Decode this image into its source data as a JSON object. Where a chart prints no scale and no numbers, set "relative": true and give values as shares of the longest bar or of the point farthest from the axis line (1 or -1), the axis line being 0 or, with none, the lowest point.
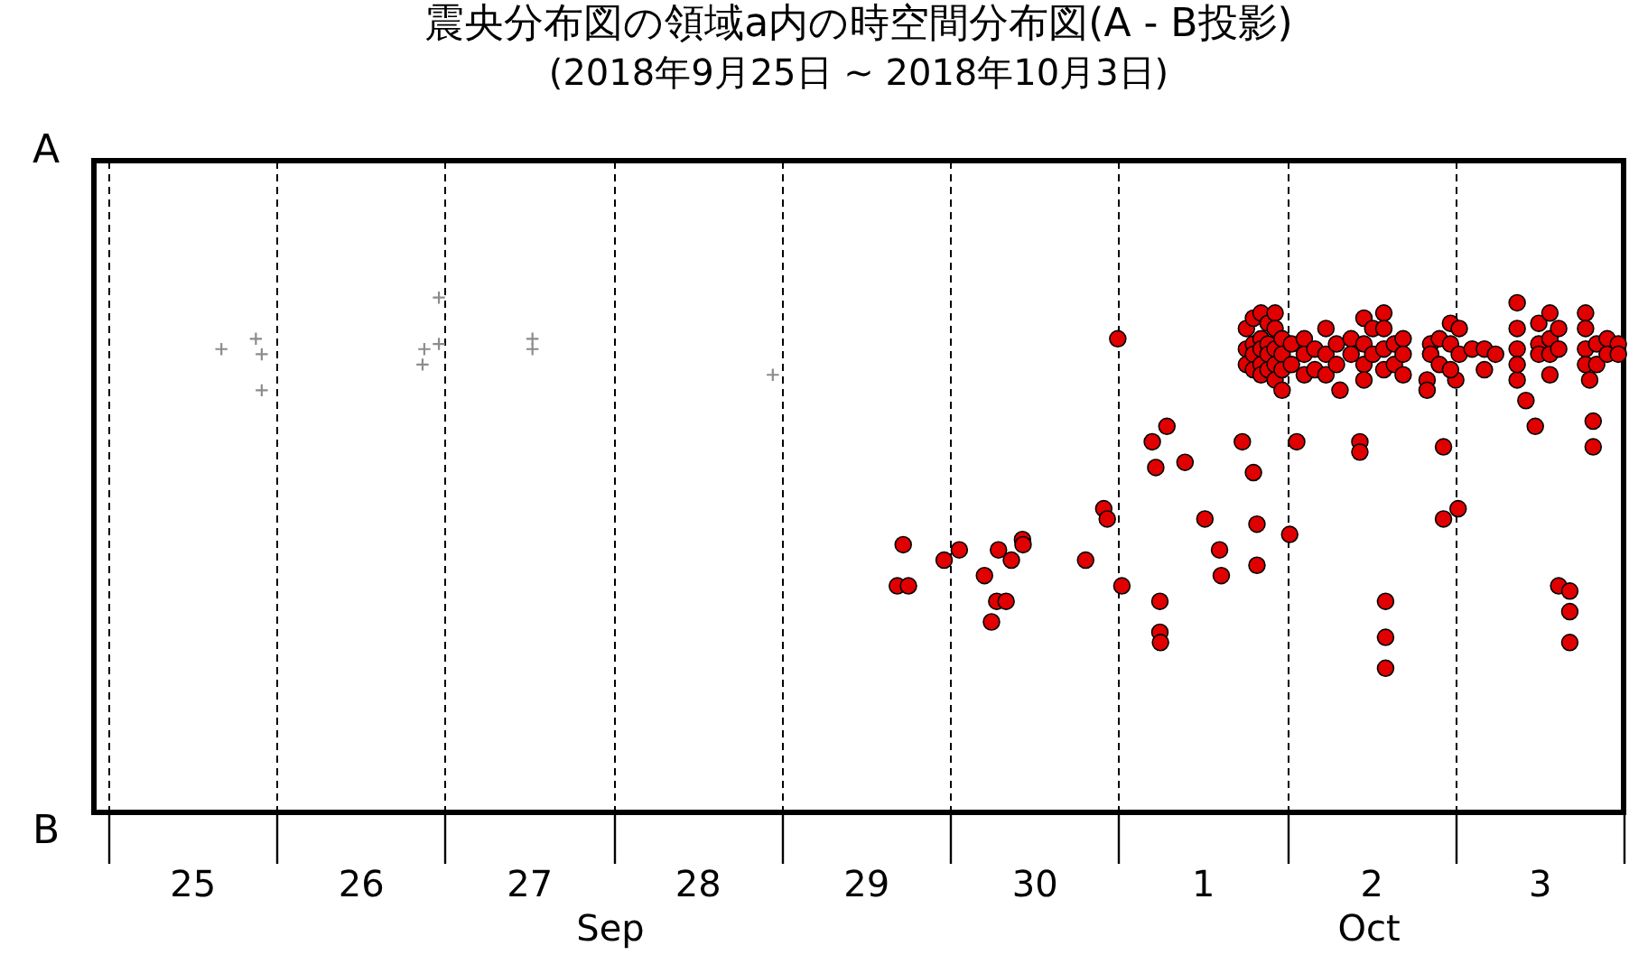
{
  "chart_data": {
    "type": "scatter",
    "title": "震央分布図の領域a内の時空間分布図(A - B投影)",
    "subtitle": "(2018年9月25日 ~ 2018年10月3日)",
    "xlim": [
      "2018-09-24T22:00",
      "2018-10-04T00:00"
    ],
    "xticks": [
      {
        "value": "2018-09-25T00:00",
        "label": null
      },
      {
        "value": "2018-09-25T12:00",
        "label": "25"
      },
      {
        "value": "2018-09-26T00:00",
        "label": null
      },
      {
        "value": "2018-09-26T12:00",
        "label": "26"
      },
      {
        "value": "2018-09-27T00:00",
        "label": null
      },
      {
        "value": "2018-09-27T12:00",
        "label": "27"
      },
      {
        "value": "2018-09-28T00:00",
        "label": null
      },
      {
        "value": "2018-09-28T12:00",
        "label": "28"
      },
      {
        "value": "2018-09-29T00:00",
        "label": null
      },
      {
        "value": "2018-09-29T12:00",
        "label": "29"
      },
      {
        "value": "2018-09-30T00:00",
        "label": null
      },
      {
        "value": "2018-09-30T12:00",
        "label": "30"
      },
      {
        "value": "2018-10-01T00:00",
        "label": null
      },
      {
        "value": "2018-10-01T12:00",
        "label": "1"
      },
      {
        "value": "2018-10-02T00:00",
        "label": null
      },
      {
        "value": "2018-10-02T12:00",
        "label": "2"
      },
      {
        "value": "2018-10-03T00:00",
        "label": null
      },
      {
        "value": "2018-10-03T12:00",
        "label": "3"
      },
      {
        "value": "2018-10-04T00:00",
        "label": null
      }
    ],
    "relative": true,
    "grid": "x",
    "annotations": [
      "A",
      "B",
      "Sep",
      "Oct"
    ],
    "series": [
      {
        "color": "#8c8c8c",
        "marker": "cross",
        "x": [
          "2018-09-25T16:10",
          "2018-09-25T21:05",
          "2018-09-25T21:55",
          "2018-09-25T21:55",
          "2018-09-26T21:05",
          "2018-09-26T20:50",
          "2018-09-26T23:10",
          "2018-09-26T23:10",
          "2018-09-27T12:30",
          "2018-09-27T12:30",
          "2018-09-28T22:45"
        ],
        "values": [
          0.9,
          0.92,
          0.89,
          0.82,
          0.9,
          0.87,
          1,
          0.91,
          0.92,
          0.9,
          0.85
        ]
      },
      {
        "color": "#e00000",
        "marker": "circle",
        "x": [
          "2018-09-29T17:20",
          "2018-09-29T16:30",
          "2018-09-29T18:05",
          "2018-09-29T23:10",
          "2018-09-30T01:20",
          "2018-09-30T04:55",
          "2018-09-30T06:55",
          "2018-09-30T08:45",
          "2018-09-30T10:20",
          "2018-09-30T10:25",
          "2018-09-30T06:40",
          "2018-09-30T08:00",
          "2018-09-30T05:55",
          "2018-09-30T19:20",
          "2018-09-30T21:55",
          "2018-09-30T22:25",
          "2018-09-30T23:55",
          "2018-10-01T00:30",
          "2018-10-01T04:50",
          "2018-10-01T06:55",
          "2018-10-01T05:20",
          "2018-10-01T09:30",
          "2018-10-01T05:55",
          "2018-10-01T05:55",
          "2018-10-01T06:00",
          "2018-10-01T12:20",
          "2018-10-01T14:25",
          "2018-10-01T14:40",
          "2018-10-01T17:40",
          "2018-10-01T19:15",
          "2018-10-01T19:45",
          "2018-10-01T19:45",
          "2018-10-02T00:25",
          "2018-10-02T01:25",
          "2018-10-02T10:25",
          "2018-10-02T10:25",
          "2018-10-02T07:35",
          "2018-10-02T14:05",
          "2018-10-02T14:05",
          "2018-10-02T14:05",
          "2018-10-02T22:20",
          "2018-10-03T00:25",
          "2018-10-02T22:20",
          "2018-10-02T20:00",
          "2018-10-02T20:00",
          "2018-10-03T00:05",
          "2018-10-03T14:45",
          "2018-10-03T16:20",
          "2018-10-03T16:20",
          "2018-10-03T16:20",
          "2018-10-03T11:25",
          "2018-10-03T19:40",
          "2018-10-03T19:40",
          "2018-10-03T08:50",
          "2018-10-03T10:05",
          "2018-10-03T19:10",
          "2018-10-01T18:15",
          "2018-10-01T18:15",
          "2018-10-01T18:15",
          "2018-10-01T19:15",
          "2018-10-01T19:15",
          "2018-10-01T19:15",
          "2018-10-01T19:15",
          "2018-10-01T20:20",
          "2018-10-01T20:20",
          "2018-10-01T20:20",
          "2018-10-01T20:20",
          "2018-10-01T20:20",
          "2018-10-01T21:20",
          "2018-10-01T21:20",
          "2018-10-01T21:20",
          "2018-10-01T21:20",
          "2018-10-01T22:20",
          "2018-10-01T22:20",
          "2018-10-01T22:20",
          "2018-10-01T22:20",
          "2018-10-01T22:20",
          "2018-10-01T23:20",
          "2018-10-01T23:20",
          "2018-10-01T23:20",
          "2018-10-01T23:20",
          "2018-10-02T00:40",
          "2018-10-02T00:40",
          "2018-10-02T02:30",
          "2018-10-02T02:30",
          "2018-10-02T02:30",
          "2018-10-02T04:00",
          "2018-10-02T04:00",
          "2018-10-02T05:35",
          "2018-10-02T05:35",
          "2018-10-02T05:35",
          "2018-10-02T07:05",
          "2018-10-02T07:05",
          "2018-10-02T09:10",
          "2018-10-02T09:10",
          "2018-10-02T11:00",
          "2018-10-02T11:00",
          "2018-10-02T11:00",
          "2018-10-02T11:00",
          "2018-10-02T12:15",
          "2018-10-02T12:15",
          "2018-10-02T13:50",
          "2018-10-02T13:50",
          "2018-10-02T13:50",
          "2018-10-02T13:50",
          "2018-10-02T15:20",
          "2018-10-02T15:20",
          "2018-10-02T16:35",
          "2018-10-02T16:35",
          "2018-10-02T16:35",
          "2018-10-02T20:30",
          "2018-10-02T20:30",
          "2018-10-02T21:45",
          "2018-10-02T21:45",
          "2018-10-02T23:20",
          "2018-10-02T23:20",
          "2018-10-02T23:20",
          "2018-10-03T00:35",
          "2018-10-03T00:35",
          "2018-10-03T02:25",
          "2018-10-03T04:10",
          "2018-10-03T04:10",
          "2018-10-03T05:45",
          "2018-10-03T08:50",
          "2018-10-03T08:50",
          "2018-10-03T08:50",
          "2018-10-03T08:50",
          "2018-10-03T11:55",
          "2018-10-03T11:55",
          "2018-10-03T11:55",
          "2018-10-03T13:30",
          "2018-10-03T13:30",
          "2018-10-03T13:30",
          "2018-10-03T13:30",
          "2018-10-03T14:45",
          "2018-10-03T14:45",
          "2018-10-03T18:35",
          "2018-10-03T18:35",
          "2018-10-03T18:35",
          "2018-10-03T18:35",
          "2018-10-03T20:10",
          "2018-10-03T20:10",
          "2018-10-03T21:40",
          "2018-10-03T21:40",
          "2018-10-03T23:15",
          "2018-10-03T23:15"
        ],
        "values": [
          0.52,
          0.44,
          0.44,
          0.49,
          0.51,
          0.46,
          0.51,
          0.49,
          0.53,
          0.52,
          0.41,
          0.41,
          0.37,
          0.49,
          0.59,
          0.57,
          0.92,
          0.44,
          0.72,
          0.75,
          0.67,
          0.68,
          0.41,
          0.35,
          0.33,
          0.57,
          0.51,
          0.46,
          0.72,
          0.66,
          0.56,
          0.48,
          0.54,
          0.72,
          0.72,
          0.7,
          0.82,
          0.41,
          0.34,
          0.28,
          0.71,
          0.59,
          0.57,
          0.84,
          0.82,
          0.84,
          0.44,
          0.43,
          0.39,
          0.33,
          0.75,
          0.76,
          0.71,
          0.84,
          0.8,
          0.84,
          0.94,
          0.9,
          0.87,
          0.96,
          0.91,
          0.89,
          0.86,
          0.97,
          0.92,
          0.9,
          0.87,
          0.85,
          0.95,
          0.91,
          0.89,
          0.86,
          0.97,
          0.94,
          0.9,
          0.87,
          0.84,
          0.92,
          0.89,
          0.86,
          0.82,
          0.91,
          0.87,
          0.92,
          0.89,
          0.85,
          0.9,
          0.86,
          0.94,
          0.89,
          0.85,
          0.91,
          0.87,
          0.92,
          0.89,
          0.96,
          0.91,
          0.87,
          0.84,
          0.94,
          0.89,
          0.97,
          0.94,
          0.9,
          0.86,
          0.91,
          0.87,
          0.92,
          0.89,
          0.85,
          0.91,
          0.89,
          0.92,
          0.87,
          0.95,
          0.91,
          0.86,
          0.94,
          0.89,
          0.9,
          0.9,
          0.86,
          0.89,
          0.99,
          0.94,
          0.9,
          0.87,
          0.95,
          0.91,
          0.89,
          0.97,
          0.92,
          0.89,
          0.85,
          0.94,
          0.9,
          0.97,
          0.94,
          0.9,
          0.87,
          0.91,
          0.87,
          0.92,
          0.89,
          0.91,
          0.89
        ]
      }
    ]
  }
}
